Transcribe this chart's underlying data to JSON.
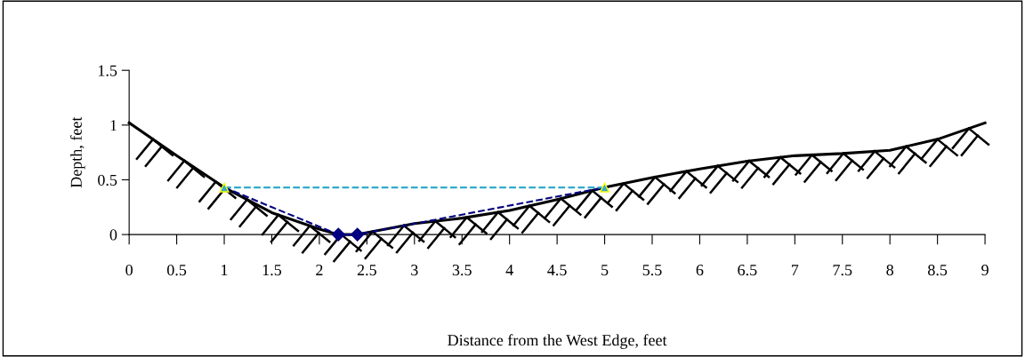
{
  "chart_data": {
    "type": "line",
    "xlabel": "Distance from the West Edge, feet",
    "ylabel": "Depth, feet",
    "xlim": [
      0,
      9
    ],
    "ylim": [
      0,
      1.5
    ],
    "xticks": [
      0,
      0.5,
      1,
      1.5,
      2,
      2.5,
      3,
      3.5,
      4,
      4.5,
      5,
      5.5,
      6,
      6.5,
      7,
      7.5,
      8,
      8.5,
      9
    ],
    "yticks": [
      0,
      0.5,
      1,
      1.5
    ],
    "grid": false,
    "series": [
      {
        "color": "#000000",
        "marker": "none",
        "line_style": "solid",
        "x": [
          0,
          0.5,
          1,
          1.5,
          2,
          2.2,
          2.4,
          3,
          3.5,
          4,
          4.5,
          5,
          5.5,
          6,
          6.5,
          7,
          7.5,
          8,
          8.5,
          9
        ],
        "values": [
          1.02,
          0.72,
          0.43,
          0.2,
          0.05,
          0,
          0,
          0.1,
          0.15,
          0.22,
          0.32,
          0.43,
          0.52,
          0.6,
          0.67,
          0.72,
          0.74,
          0.77,
          0.87,
          1.02
        ]
      },
      {
        "color": "#000080",
        "marker": "diamond",
        "line_style": "dashed",
        "x": [
          2.2,
          2.4
        ],
        "values": [
          0,
          0
        ]
      },
      {
        "color": "#000080",
        "marker": "none",
        "line_style": "dashed",
        "x": [
          1,
          2.2,
          2.4,
          5
        ],
        "values": [
          0.43,
          0,
          0,
          0.43
        ]
      },
      {
        "color": "#33aacc",
        "marker": "triangle",
        "line_style": "dashed",
        "x": [
          1,
          5
        ],
        "values": [
          0.43,
          0.43
        ]
      }
    ]
  }
}
